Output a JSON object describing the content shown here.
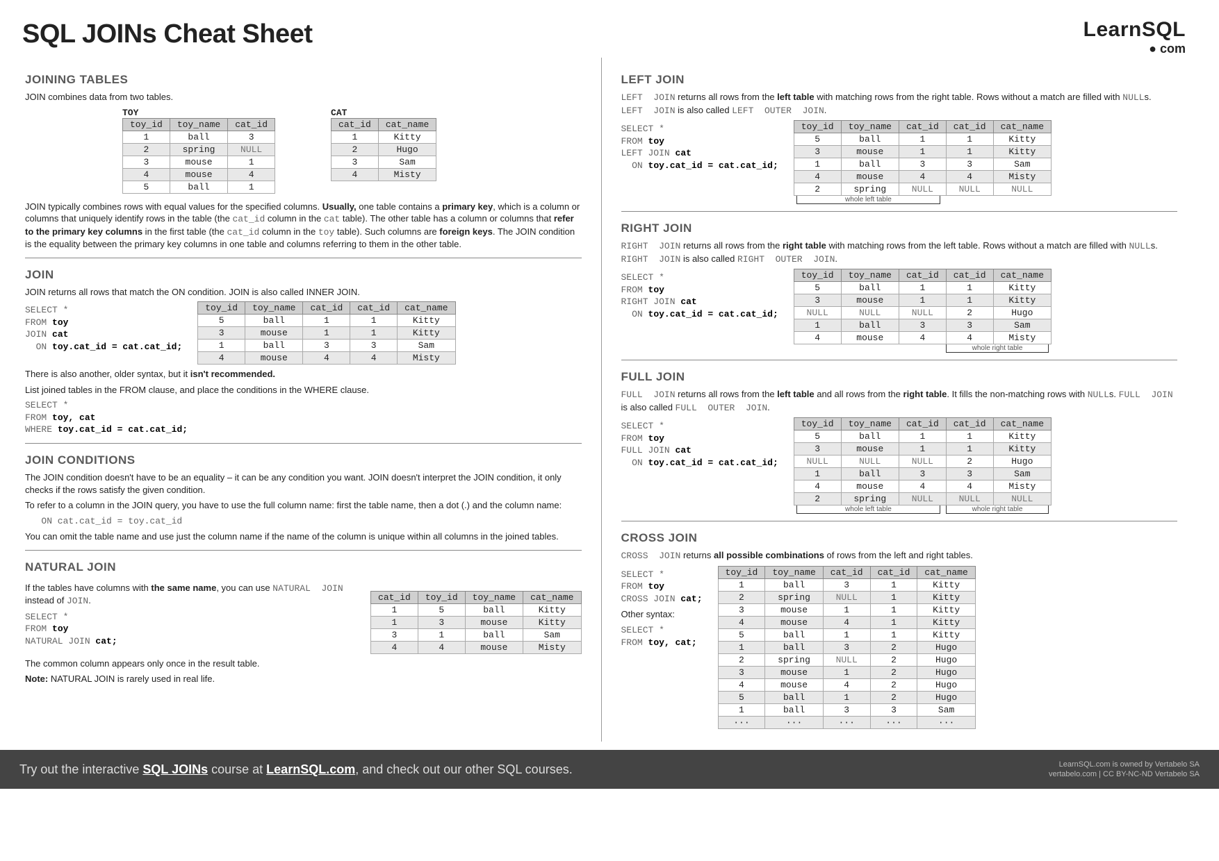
{
  "title": "SQL JOINs Cheat Sheet",
  "logo": {
    "line1": "LearnSQL",
    "line2": "● com"
  },
  "sec": {
    "joining_tables": "JOINING TABLES",
    "join": "JOIN",
    "join_conditions": "JOIN CONDITIONS",
    "natural_join": "NATURAL JOIN",
    "left_join": "LEFT JOIN",
    "right_join": "RIGHT JOIN",
    "full_join": "FULL JOIN",
    "cross_join": "CROSS JOIN"
  },
  "text": {
    "jt_intro": "JOIN combines data from two tables.",
    "jt_para": "JOIN typically combines rows with equal values for the specified columns. Usually, one table contains a primary key, which is a column or columns that uniquely identify rows in the table (the cat_id column in the cat table). The other table has a column or columns that refer to the primary key columns in the first table (the cat_id column in the toy table). Such columns are foreign keys. The JOIN condition is the equality between the primary key columns in one table and columns referring to them in the other table.",
    "join_intro": "JOIN returns all rows that match the ON condition. JOIN is also called INNER  JOIN.",
    "join_note1": "There is also another, older syntax, but it isn't recommended.",
    "join_note2": "List joined tables in the FROM clause, and place the conditions in the WHERE clause.",
    "jc_p1": "The JOIN condition doesn't have to be an equality – it can be any condition you want. JOIN doesn't interpret the JOIN condition, it only checks if the rows satisfy the given condition.",
    "jc_p2": "To refer to a column in the JOIN query, you have to use the full column name: first the table name, then a dot (.) and the column name:",
    "jc_code": "   ON cat.cat_id = toy.cat_id",
    "jc_p3": "You can omit the table name and use just the column name if the name of the column is unique within all columns in the joined tables.",
    "nj_p1": "If the tables have columns with the same name, you can use NATURAL  JOIN instead of JOIN.",
    "nj_p2": "The common column appears only once in the result table.",
    "nj_p3": "Note:  NATURAL JOIN is rarely used in real life.",
    "lj": "LEFT  JOIN returns all rows from the left table with matching rows from the right table. Rows without a match are filled with NULLs. LEFT  JOIN is also called LEFT  OUTER  JOIN.",
    "rj": "RIGHT  JOIN returns all rows from the right table with matching rows from the left table. Rows without a match are filled with NULLs. RIGHT  JOIN is also called RIGHT  OUTER  JOIN.",
    "fj": "FULL  JOIN returns all rows from the left table and all rows from the right table. It fills the non-matching rows with NULLs. FULL  JOIN is also called FULL  OUTER  JOIN.",
    "cj": "CROSS  JOIN returns all possible combinations of rows from the left and right tables.",
    "other_syntax": "Other syntax:",
    "whole_left": "whole left table",
    "whole_right": "whole right table"
  },
  "labels": {
    "toy": "TOY",
    "cat": "CAT"
  },
  "codes": {
    "join": "SELECT *\nFROM toy\nJOIN cat\n  ON toy.cat_id = cat.cat_id;",
    "join_old": "SELECT *\nFROM toy, cat\nWHERE toy.cat_id = cat.cat_id;",
    "nj": "SELECT *\nFROM toy\nNATURAL JOIN cat;",
    "lj": "SELECT *\nFROM toy\nLEFT JOIN cat\n  ON toy.cat_id = cat.cat_id;",
    "rj": "SELECT *\nFROM toy\nRIGHT JOIN cat\n  ON toy.cat_id = cat.cat_id;",
    "fj": "SELECT *\nFROM toy\nFULL JOIN cat\n  ON toy.cat_id = cat.cat_id;",
    "cj1": "SELECT *\nFROM toy\nCROSS JOIN cat;",
    "cj2": "SELECT *\nFROM toy, cat;"
  },
  "tables": {
    "toy": {
      "cols": [
        "toy_id",
        "toy_name",
        "cat_id"
      ],
      "rows": [
        [
          "1",
          "ball",
          "3"
        ],
        [
          "2",
          "spring",
          "NULL"
        ],
        [
          "3",
          "mouse",
          "1"
        ],
        [
          "4",
          "mouse",
          "4"
        ],
        [
          "5",
          "ball",
          "1"
        ]
      ]
    },
    "cat": {
      "cols": [
        "cat_id",
        "cat_name"
      ],
      "rows": [
        [
          "1",
          "Kitty"
        ],
        [
          "2",
          "Hugo"
        ],
        [
          "3",
          "Sam"
        ],
        [
          "4",
          "Misty"
        ]
      ]
    },
    "join_res": {
      "cols": [
        "toy_id",
        "toy_name",
        "cat_id",
        "cat_id",
        "cat_name"
      ],
      "rows": [
        [
          "5",
          "ball",
          "1",
          "1",
          "Kitty"
        ],
        [
          "3",
          "mouse",
          "1",
          "1",
          "Kitty"
        ],
        [
          "1",
          "ball",
          "3",
          "3",
          "Sam"
        ],
        [
          "4",
          "mouse",
          "4",
          "4",
          "Misty"
        ]
      ]
    },
    "nj_res": {
      "cols": [
        "cat_id",
        "toy_id",
        "toy_name",
        "cat_name"
      ],
      "rows": [
        [
          "1",
          "5",
          "ball",
          "Kitty"
        ],
        [
          "1",
          "3",
          "mouse",
          "Kitty"
        ],
        [
          "3",
          "1",
          "ball",
          "Sam"
        ],
        [
          "4",
          "4",
          "mouse",
          "Misty"
        ]
      ]
    },
    "lj_res": {
      "cols": [
        "toy_id",
        "toy_name",
        "cat_id",
        "cat_id",
        "cat_name"
      ],
      "rows": [
        [
          "5",
          "ball",
          "1",
          "1",
          "Kitty"
        ],
        [
          "3",
          "mouse",
          "1",
          "1",
          "Kitty"
        ],
        [
          "1",
          "ball",
          "3",
          "3",
          "Sam"
        ],
        [
          "4",
          "mouse",
          "4",
          "4",
          "Misty"
        ],
        [
          "2",
          "spring",
          "NULL",
          "NULL",
          "NULL"
        ]
      ]
    },
    "rj_res": {
      "cols": [
        "toy_id",
        "toy_name",
        "cat_id",
        "cat_id",
        "cat_name"
      ],
      "rows": [
        [
          "5",
          "ball",
          "1",
          "1",
          "Kitty"
        ],
        [
          "3",
          "mouse",
          "1",
          "1",
          "Kitty"
        ],
        [
          "NULL",
          "NULL",
          "NULL",
          "2",
          "Hugo"
        ],
        [
          "1",
          "ball",
          "3",
          "3",
          "Sam"
        ],
        [
          "4",
          "mouse",
          "4",
          "4",
          "Misty"
        ]
      ]
    },
    "fj_res": {
      "cols": [
        "toy_id",
        "toy_name",
        "cat_id",
        "cat_id",
        "cat_name"
      ],
      "rows": [
        [
          "5",
          "ball",
          "1",
          "1",
          "Kitty"
        ],
        [
          "3",
          "mouse",
          "1",
          "1",
          "Kitty"
        ],
        [
          "NULL",
          "NULL",
          "NULL",
          "2",
          "Hugo"
        ],
        [
          "1",
          "ball",
          "3",
          "3",
          "Sam"
        ],
        [
          "4",
          "mouse",
          "4",
          "4",
          "Misty"
        ],
        [
          "2",
          "spring",
          "NULL",
          "NULL",
          "NULL"
        ]
      ]
    },
    "cj_res": {
      "cols": [
        "toy_id",
        "toy_name",
        "cat_id",
        "cat_id",
        "cat_name"
      ],
      "rows": [
        [
          "1",
          "ball",
          "3",
          "1",
          "Kitty"
        ],
        [
          "2",
          "spring",
          "NULL",
          "1",
          "Kitty"
        ],
        [
          "3",
          "mouse",
          "1",
          "1",
          "Kitty"
        ],
        [
          "4",
          "mouse",
          "4",
          "1",
          "Kitty"
        ],
        [
          "5",
          "ball",
          "1",
          "1",
          "Kitty"
        ],
        [
          "1",
          "ball",
          "3",
          "2",
          "Hugo"
        ],
        [
          "2",
          "spring",
          "NULL",
          "2",
          "Hugo"
        ],
        [
          "3",
          "mouse",
          "1",
          "2",
          "Hugo"
        ],
        [
          "4",
          "mouse",
          "4",
          "2",
          "Hugo"
        ],
        [
          "5",
          "ball",
          "1",
          "2",
          "Hugo"
        ],
        [
          "1",
          "ball",
          "3",
          "3",
          "Sam"
        ],
        [
          "···",
          "···",
          "···",
          "···",
          "···"
        ]
      ]
    }
  },
  "footer": {
    "text": "Try out the interactive SQL JOINs course at LearnSQL.com, and check out our other SQL courses.",
    "r1": "LearnSQL.com is owned by Vertabelo SA",
    "r2": "vertabelo.com | CC BY-NC-ND Vertabelo SA"
  },
  "style": {
    "header_bg": "#d0d0d0",
    "shade_bg": "#e8e8e8",
    "footer_bg": "#444444"
  }
}
